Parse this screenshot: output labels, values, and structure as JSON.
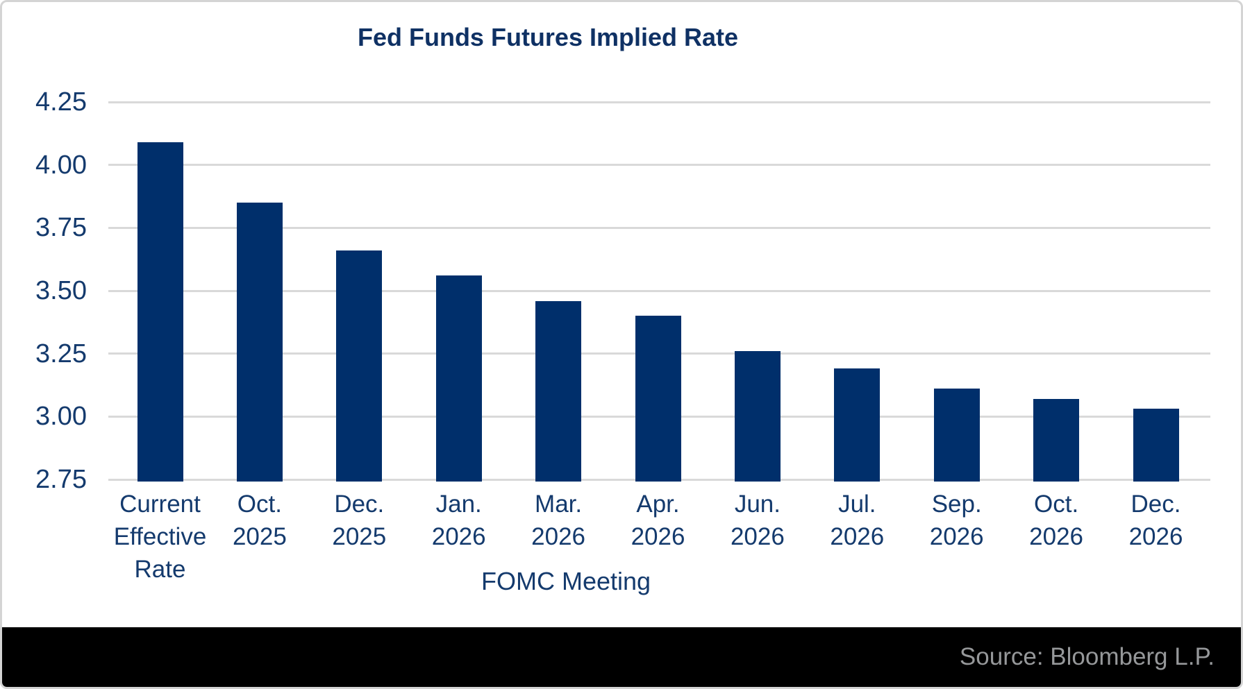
{
  "title": "Fed Funds Futures Implied Rate",
  "footer": {
    "source": "Source: Bloomberg L.P."
  },
  "chart_data": {
    "type": "bar",
    "title": "Fed Funds Futures Implied Rate",
    "xlabel": "FOMC Meeting",
    "ylabel": "",
    "ylim": [
      2.75,
      4.25
    ],
    "ytick_interval": 0.25,
    "ytick_labels": [
      "4.25",
      "4.00",
      "3.75",
      "3.50",
      "3.25",
      "3.00",
      "2.75"
    ],
    "grid": true,
    "legend": false,
    "categories": [
      "Current Effective Rate",
      "Oct. 2025",
      "Dec. 2025",
      "Jan. 2026",
      "Mar. 2026",
      "Apr. 2026",
      "Jun. 2026",
      "Jul. 2026",
      "Sep. 2026",
      "Oct. 2026",
      "Dec. 2026"
    ],
    "category_label_lines": [
      [
        "Current",
        "Effective",
        "Rate"
      ],
      [
        "Oct.",
        "2025"
      ],
      [
        "Dec.",
        "2025"
      ],
      [
        "Jan.",
        "2026"
      ],
      [
        "Mar.",
        "2026"
      ],
      [
        "Apr.",
        "2026"
      ],
      [
        "Jun.",
        "2026"
      ],
      [
        "Jul.",
        "2026"
      ],
      [
        "Sep.",
        "2026"
      ],
      [
        "Oct.",
        "2026"
      ],
      [
        "Dec.",
        "2026"
      ]
    ],
    "values": [
      4.09,
      3.85,
      3.66,
      3.56,
      3.46,
      3.4,
      3.26,
      3.19,
      3.11,
      3.07,
      3.03
    ]
  },
  "colors": {
    "bar": "#002f6b",
    "axis_text": "#143a6d",
    "title_text": "#0f3164",
    "gridline": "#d9d9d9",
    "footer_bg": "#000000",
    "footer_text": "#96989a",
    "card_border": "#d4d4d4",
    "background": "#ffffff"
  }
}
